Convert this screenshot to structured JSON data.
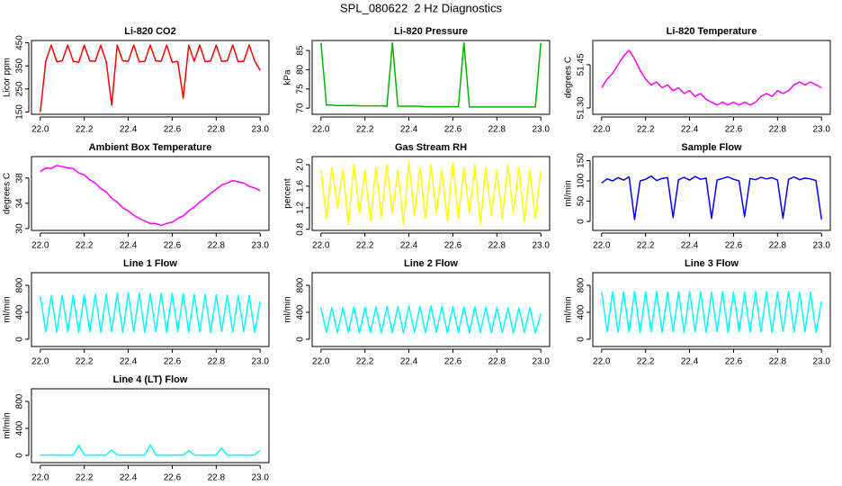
{
  "title": "SPL_080622  2 Hz Diagnostics",
  "chart_data": [
    {
      "type": "line",
      "title": "Li-820 CO2",
      "ylabel": "Licor ppm",
      "color": "#ff0000",
      "x": [
        22,
        22.025,
        22.05,
        22.075,
        22.1,
        22.125,
        22.15,
        22.175,
        22.2,
        22.225,
        22.25,
        22.275,
        22.3,
        22.325,
        22.35,
        22.375,
        22.4,
        22.425,
        22.45,
        22.475,
        22.5,
        22.525,
        22.55,
        22.575,
        22.6,
        22.625,
        22.65,
        22.675,
        22.7,
        22.725,
        22.75,
        22.775,
        22.8,
        22.825,
        22.85,
        22.875,
        22.9,
        22.925,
        22.95,
        22.975,
        23
      ],
      "values": [
        150,
        370,
        440,
        368,
        372,
        440,
        370,
        366,
        440,
        372,
        370,
        440,
        368,
        180,
        440,
        372,
        370,
        440,
        368,
        370,
        440,
        372,
        370,
        440,
        366,
        370,
        210,
        440,
        370,
        440,
        368,
        372,
        440,
        370,
        372,
        440,
        368,
        370,
        440,
        372,
        330
      ],
      "xlim": [
        21.96,
        23.04
      ],
      "xticks": [
        {
          "value": 22,
          "label": "22.0"
        },
        22.2,
        22.4,
        22.6,
        22.8,
        {
          "value": 23,
          "label": "23.0"
        }
      ],
      "ylim": [
        140,
        460
      ],
      "yticks": [
        150,
        250,
        350,
        450
      ]
    },
    {
      "type": "line",
      "title": "Li-820 Pressure",
      "ylabel": "kPa",
      "color": "#00b400",
      "x": [
        22,
        22.025,
        22.05,
        22.075,
        22.1,
        22.125,
        22.15,
        22.175,
        22.2,
        22.225,
        22.25,
        22.275,
        22.3,
        22.325,
        22.35,
        22.375,
        22.4,
        22.425,
        22.45,
        22.475,
        22.5,
        22.525,
        22.55,
        22.575,
        22.6,
        22.625,
        22.65,
        22.675,
        22.7,
        22.725,
        22.75,
        22.775,
        22.8,
        22.825,
        22.85,
        22.875,
        22.9,
        22.925,
        22.95,
        22.975,
        23
      ],
      "values": [
        87,
        70.8,
        70.8,
        70.7,
        70.7,
        70.7,
        70.7,
        70.6,
        70.6,
        70.6,
        70.6,
        70.6,
        70.5,
        87,
        70.5,
        70.5,
        70.5,
        70.5,
        70.5,
        70.4,
        70.4,
        70.4,
        70.4,
        70.4,
        70.4,
        70.4,
        87,
        70.3,
        70.3,
        70.3,
        70.3,
        70.3,
        70.3,
        70.3,
        70.3,
        70.3,
        70.3,
        70.3,
        70.3,
        70.3,
        87
      ],
      "xlim": [
        21.96,
        23.04
      ],
      "xticks": [
        {
          "value": 22,
          "label": "22.0"
        },
        22.2,
        22.4,
        22.6,
        22.8,
        {
          "value": 23,
          "label": "23.0"
        }
      ],
      "ylim": [
        68.4,
        87.6
      ],
      "yticks": [
        70,
        75,
        80,
        85
      ]
    },
    {
      "type": "line",
      "title": "Li-820 Temperature",
      "ylabel": "degrees C",
      "color": "#ff00ff",
      "x": [
        22,
        22.025,
        22.05,
        22.075,
        22.1,
        22.125,
        22.15,
        22.175,
        22.2,
        22.225,
        22.25,
        22.275,
        22.3,
        22.325,
        22.35,
        22.375,
        22.4,
        22.425,
        22.45,
        22.475,
        22.5,
        22.525,
        22.55,
        22.575,
        22.6,
        22.625,
        22.65,
        22.675,
        22.7,
        22.725,
        22.75,
        22.775,
        22.8,
        22.825,
        22.85,
        22.875,
        22.9,
        22.925,
        22.95,
        22.975,
        23
      ],
      "values": [
        51.37,
        51.4,
        51.42,
        51.45,
        51.48,
        51.5,
        51.47,
        51.43,
        51.4,
        51.38,
        51.39,
        51.37,
        51.38,
        51.36,
        51.37,
        51.35,
        51.36,
        51.34,
        51.35,
        51.33,
        51.32,
        51.31,
        51.32,
        51.31,
        51.32,
        51.31,
        51.32,
        51.31,
        51.32,
        51.34,
        51.35,
        51.34,
        51.36,
        51.35,
        51.36,
        51.38,
        51.39,
        51.38,
        51.39,
        51.38,
        51.37
      ],
      "xlim": [
        21.96,
        23.04
      ],
      "xticks": [
        {
          "value": 22,
          "label": "22.0"
        },
        22.2,
        22.4,
        22.6,
        22.8,
        {
          "value": 23,
          "label": "23.0"
        }
      ],
      "ylim": [
        51.278,
        51.534
      ],
      "yticks": [
        {
          "value": 51.3,
          "label": "51.30"
        },
        51.45
      ]
    },
    {
      "type": "line",
      "title": "Ambient Box Temperature",
      "ylabel": "degrees C",
      "color": "#ff00ff",
      "x": [
        22,
        22.025,
        22.05,
        22.075,
        22.1,
        22.125,
        22.15,
        22.175,
        22.2,
        22.225,
        22.25,
        22.275,
        22.3,
        22.325,
        22.35,
        22.375,
        22.4,
        22.425,
        22.45,
        22.475,
        22.5,
        22.525,
        22.55,
        22.575,
        22.6,
        22.625,
        22.65,
        22.675,
        22.7,
        22.725,
        22.75,
        22.775,
        22.8,
        22.825,
        22.85,
        22.875,
        22.9,
        22.925,
        22.95,
        22.975,
        23
      ],
      "values": [
        39,
        39.6,
        39.5,
        40,
        39.8,
        39.6,
        39.5,
        38.8,
        38.5,
        37.7,
        37.2,
        36.3,
        35.8,
        34.8,
        34.2,
        33.3,
        32.8,
        32.1,
        31.6,
        31.2,
        30.8,
        30.8,
        30.5,
        30.8,
        31,
        31.6,
        32,
        32.8,
        33.4,
        34.2,
        34.8,
        35.6,
        36.2,
        36.9,
        37.2,
        37.6,
        37.4,
        37.2,
        36.7,
        36.4,
        36
      ],
      "xlim": [
        21.96,
        23.04
      ],
      "xticks": [
        {
          "value": 22,
          "label": "22.0"
        },
        22.2,
        22.4,
        22.6,
        22.8,
        {
          "value": 23,
          "label": "23.0"
        }
      ],
      "ylim": [
        29.7,
        41.4
      ],
      "yticks": [
        30,
        34,
        38
      ]
    },
    {
      "type": "line",
      "title": "Gas Stream RH",
      "ylabel": "percent",
      "color": "#ffff00",
      "x": [
        22,
        22.025,
        22.05,
        22.075,
        22.1,
        22.125,
        22.15,
        22.175,
        22.2,
        22.225,
        22.25,
        22.275,
        22.3,
        22.325,
        22.35,
        22.375,
        22.4,
        22.425,
        22.45,
        22.475,
        22.5,
        22.525,
        22.55,
        22.575,
        22.6,
        22.625,
        22.65,
        22.675,
        22.7,
        22.725,
        22.75,
        22.775,
        22.8,
        22.825,
        22.85,
        22.875,
        22.9,
        22.925,
        22.95,
        22.975,
        23
      ],
      "values": [
        1.9,
        1,
        1.95,
        1.2,
        1.9,
        0.9,
        2,
        1.1,
        1.9,
        0.95,
        1.95,
        1,
        2,
        1.1,
        1.9,
        0.9,
        2.05,
        1.05,
        1.95,
        1,
        2,
        1.1,
        1.9,
        0.95,
        2.05,
        1,
        1.95,
        1.1,
        2,
        0.9,
        1.95,
        1.05,
        1.9,
        1,
        2,
        1.1,
        1.95,
        0.95,
        1.9,
        1,
        1.9
      ],
      "xlim": [
        21.96,
        23.04
      ],
      "xticks": [
        {
          "value": 22,
          "label": "22.0"
        },
        22.2,
        22.4,
        22.6,
        22.8,
        {
          "value": 23,
          "label": "23.0"
        }
      ],
      "ylim": [
        0.78,
        2.15
      ],
      "yticks": [
        0.8,
        1.2,
        1.6,
        {
          "value": 2,
          "label": "2.0"
        }
      ]
    },
    {
      "type": "line",
      "title": "Sample Flow",
      "ylabel": "ml/min",
      "color": "#0000ff",
      "x": [
        22,
        22.025,
        22.05,
        22.075,
        22.1,
        22.125,
        22.15,
        22.175,
        22.2,
        22.225,
        22.25,
        22.275,
        22.3,
        22.325,
        22.35,
        22.375,
        22.4,
        22.425,
        22.45,
        22.475,
        22.5,
        22.525,
        22.55,
        22.575,
        22.6,
        22.625,
        22.65,
        22.675,
        22.7,
        22.725,
        22.75,
        22.775,
        22.8,
        22.825,
        22.85,
        22.875,
        22.9,
        22.925,
        22.95,
        22.975,
        23
      ],
      "values": [
        95,
        105,
        100,
        108,
        102,
        110,
        5,
        100,
        104,
        112,
        101,
        106,
        108,
        10,
        103,
        109,
        102,
        111,
        104,
        107,
        8,
        102,
        106,
        110,
        104,
        100,
        12,
        106,
        103,
        109,
        105,
        108,
        102,
        8,
        104,
        110,
        103,
        107,
        105,
        101,
        5
      ],
      "xlim": [
        21.96,
        23.04
      ],
      "xticks": [
        {
          "value": 22,
          "label": "22.0"
        },
        22.2,
        22.4,
        22.6,
        22.8,
        {
          "value": 23,
          "label": "23.0"
        }
      ],
      "ylim": [
        -22,
        160
      ],
      "yticks": [
        0,
        50,
        100,
        150
      ]
    },
    {
      "type": "line",
      "title": "Line 1 Flow",
      "ylabel": "ml/min",
      "color": "#00ffff",
      "x": [
        22,
        22.025,
        22.05,
        22.075,
        22.1,
        22.125,
        22.15,
        22.175,
        22.2,
        22.225,
        22.25,
        22.275,
        22.3,
        22.325,
        22.35,
        22.375,
        22.4,
        22.425,
        22.45,
        22.475,
        22.5,
        22.525,
        22.55,
        22.575,
        22.6,
        22.625,
        22.65,
        22.675,
        22.7,
        22.725,
        22.75,
        22.775,
        22.8,
        22.825,
        22.85,
        22.875,
        22.9,
        22.925,
        22.95,
        22.975,
        23
      ],
      "values": [
        640,
        110,
        645,
        105,
        650,
        110,
        655,
        100,
        660,
        110,
        665,
        105,
        670,
        110,
        680,
        100,
        690,
        110,
        685,
        105,
        680,
        110,
        690,
        100,
        685,
        110,
        675,
        105,
        670,
        110,
        665,
        100,
        660,
        110,
        655,
        105,
        650,
        110,
        645,
        100,
        560
      ],
      "xlim": [
        21.96,
        23.04
      ],
      "xticks": [
        {
          "value": 22,
          "label": "22.0"
        },
        22.2,
        22.4,
        22.6,
        22.8,
        {
          "value": 23,
          "label": "23.0"
        }
      ],
      "ylim": [
        -107,
        987
      ],
      "yticks": [
        0,
        400,
        800
      ]
    },
    {
      "type": "line",
      "title": "Line 2 Flow",
      "ylabel": "ml/min",
      "color": "#00ffff",
      "x": [
        22,
        22.025,
        22.05,
        22.075,
        22.1,
        22.125,
        22.15,
        22.175,
        22.2,
        22.225,
        22.25,
        22.275,
        22.3,
        22.325,
        22.35,
        22.375,
        22.4,
        22.425,
        22.45,
        22.475,
        22.5,
        22.525,
        22.55,
        22.575,
        22.6,
        22.625,
        22.65,
        22.675,
        22.7,
        22.725,
        22.75,
        22.775,
        22.8,
        22.825,
        22.85,
        22.875,
        22.9,
        22.925,
        22.95,
        22.975,
        23
      ],
      "values": [
        470,
        100,
        475,
        95,
        470,
        100,
        480,
        95,
        475,
        100,
        480,
        95,
        485,
        100,
        490,
        95,
        495,
        100,
        490,
        95,
        495,
        100,
        490,
        95,
        485,
        100,
        480,
        95,
        480,
        100,
        475,
        95,
        470,
        100,
        470,
        95,
        465,
        100,
        470,
        95,
        380
      ],
      "xlim": [
        21.96,
        23.04
      ],
      "xticks": [
        {
          "value": 22,
          "label": "22.0"
        },
        22.2,
        22.4,
        22.6,
        22.8,
        {
          "value": 23,
          "label": "23.0"
        }
      ],
      "ylim": [
        -107,
        987
      ],
      "yticks": [
        0,
        400,
        800
      ]
    },
    {
      "type": "line",
      "title": "Line 3 Flow",
      "ylabel": "ml/min",
      "color": "#00ffff",
      "x": [
        22,
        22.025,
        22.05,
        22.075,
        22.1,
        22.125,
        22.15,
        22.175,
        22.2,
        22.225,
        22.25,
        22.275,
        22.3,
        22.325,
        22.35,
        22.375,
        22.4,
        22.425,
        22.45,
        22.475,
        22.5,
        22.525,
        22.55,
        22.575,
        22.6,
        22.625,
        22.65,
        22.675,
        22.7,
        22.725,
        22.75,
        22.775,
        22.8,
        22.825,
        22.85,
        22.875,
        22.9,
        22.925,
        22.95,
        22.975,
        23
      ],
      "values": [
        700,
        110,
        705,
        105,
        700,
        110,
        710,
        100,
        705,
        110,
        710,
        105,
        700,
        110,
        705,
        100,
        710,
        110,
        705,
        105,
        700,
        110,
        710,
        100,
        705,
        110,
        700,
        105,
        710,
        110,
        705,
        100,
        700,
        110,
        710,
        105,
        705,
        110,
        700,
        100,
        560
      ],
      "xlim": [
        21.96,
        23.04
      ],
      "xticks": [
        {
          "value": 22,
          "label": "22.0"
        },
        22.2,
        22.4,
        22.6,
        22.8,
        {
          "value": 23,
          "label": "23.0"
        }
      ],
      "ylim": [
        -107,
        987
      ],
      "yticks": [
        0,
        400,
        800
      ]
    },
    {
      "type": "line",
      "title": "Line 4 (LT) Flow",
      "ylabel": "ml/min",
      "color": "#00ffff",
      "x": [
        22,
        22.025,
        22.05,
        22.075,
        22.1,
        22.125,
        22.15,
        22.175,
        22.2,
        22.225,
        22.25,
        22.275,
        22.3,
        22.325,
        22.35,
        22.375,
        22.4,
        22.425,
        22.45,
        22.475,
        22.5,
        22.525,
        22.55,
        22.575,
        22.6,
        22.625,
        22.65,
        22.675,
        22.7,
        22.725,
        22.75,
        22.775,
        22.8,
        22.825,
        22.85,
        22.875,
        22.9,
        22.925,
        22.95,
        22.975,
        23
      ],
      "values": [
        5,
        5,
        8,
        4,
        6,
        5,
        4,
        150,
        6,
        5,
        4,
        6,
        5,
        80,
        6,
        4,
        5,
        6,
        5,
        4,
        160,
        5,
        6,
        4,
        5,
        6,
        5,
        70,
        6,
        5,
        4,
        6,
        5,
        110,
        5,
        4,
        6,
        5,
        4,
        6,
        80
      ],
      "xlim": [
        21.96,
        23.04
      ],
      "xticks": [
        {
          "value": 22,
          "label": "22.0"
        },
        22.2,
        22.4,
        22.6,
        22.8,
        {
          "value": 23,
          "label": "23.0"
        }
      ],
      "ylim": [
        -107,
        987
      ],
      "yticks": [
        0,
        400,
        800
      ]
    }
  ]
}
